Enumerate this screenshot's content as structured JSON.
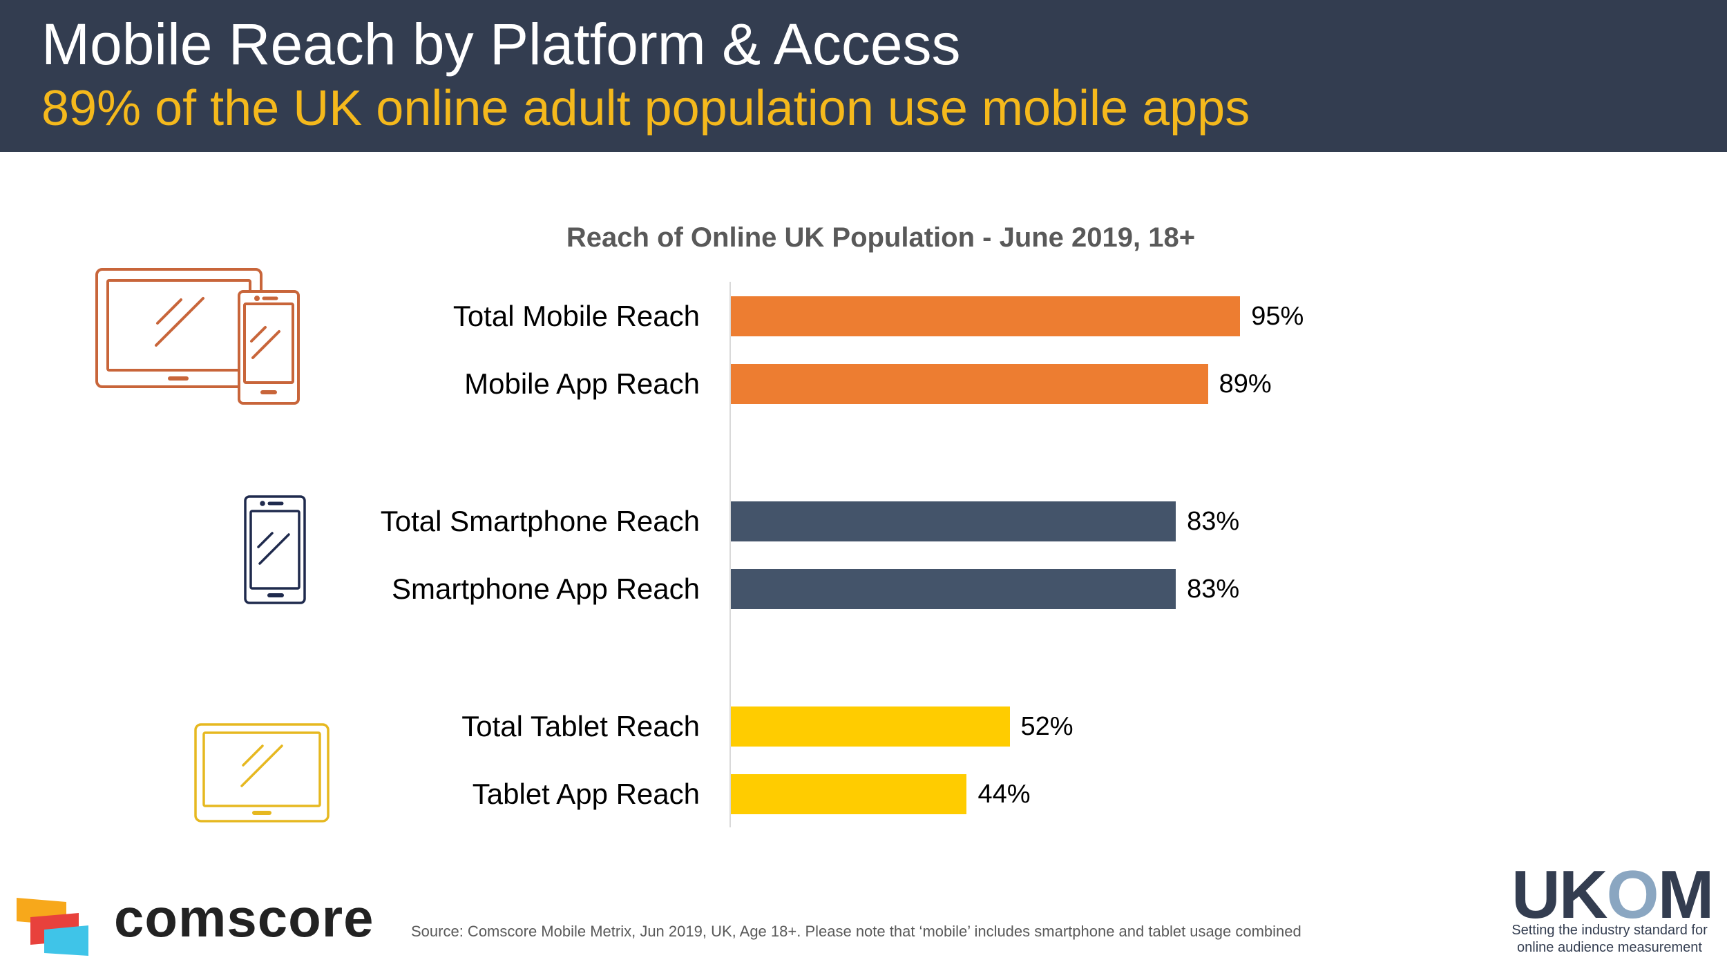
{
  "header": {
    "title": "Mobile Reach by Platform & Access",
    "subtitle": "89% of the UK online adult population use mobile apps"
  },
  "chart_data": {
    "type": "bar",
    "orientation": "horizontal",
    "title": "Reach of Online UK Population - June 2019, 18+",
    "categories": [
      "Total Mobile Reach",
      "Mobile App Reach",
      "Total Smartphone Reach",
      "Smartphone App Reach",
      "Total Tablet Reach",
      "Tablet App Reach"
    ],
    "values": [
      95,
      89,
      83,
      83,
      52,
      44
    ],
    "value_labels": [
      "95%",
      "89%",
      "83%",
      "83%",
      "52%",
      "44%"
    ],
    "colors": [
      "#ed7d31",
      "#ed7d31",
      "#44546a",
      "#44546a",
      "#ffcc00",
      "#ffcc00"
    ],
    "xlim": [
      0,
      100
    ],
    "grid": false,
    "legend": "none"
  },
  "icons": {
    "group1": "tablet-and-phone-icon",
    "group2": "smartphone-icon",
    "group3": "tablet-icon",
    "group1_color": "#c8653a",
    "group2_color": "#1f2a4d",
    "group3_color": "#e6b820"
  },
  "footer": {
    "source": "Source: Comscore Mobile Metrix, Jun 2019, UK, Age 18+. Please note that ‘mobile’ includes smartphone and tablet usage combined",
    "comscore_logo_text": "comscore",
    "ukom_logo_text": "UKOM",
    "ukom_tagline_1": "Setting the industry standard for",
    "ukom_tagline_2": "online audience measurement"
  }
}
